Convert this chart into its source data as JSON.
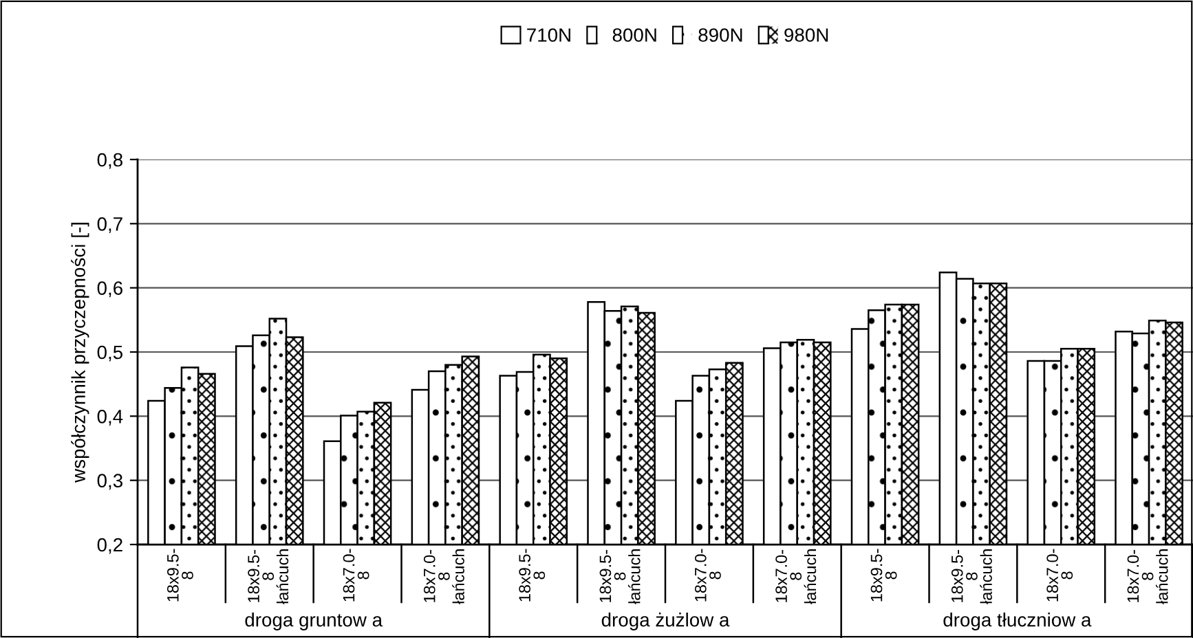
{
  "chart_data": {
    "type": "bar",
    "ylabel": "współczynnik przyczepności [-]",
    "categories": [
      "18x9.5-8",
      "18x9.5-8 łańcuch",
      "18x7.0-8",
      "18x7.0-8 łańcuch",
      "18x9.5-8",
      "18x9.5-8 łańcuch",
      "18x7.0-8",
      "18x7.0-8 łańcuch",
      "18x9.5-8",
      "18x9.5-8 łańcuch",
      "18x7.0-8",
      "18x7.0-8 łańcuch"
    ],
    "series": [
      {
        "name": "710N",
        "color": "#ffffff",
        "values": [
          0.424,
          0.509,
          0.361,
          0.441,
          0.463,
          0.578,
          0.424,
          0.506,
          0.536,
          0.624,
          0.486,
          0.532
        ]
      },
      {
        "name": "800N",
        "color": "#ffffff",
        "values": [
          0.444,
          0.526,
          0.401,
          0.47,
          0.469,
          0.564,
          0.463,
          0.515,
          0.565,
          0.614,
          0.486,
          0.529
        ]
      },
      {
        "name": "890N",
        "color": "#ffffff",
        "values": [
          0.476,
          0.552,
          0.407,
          0.48,
          0.496,
          0.571,
          0.473,
          0.519,
          0.574,
          0.607,
          0.505,
          0.549
        ]
      },
      {
        "name": "980N",
        "color": "#ffffff",
        "values": [
          0.466,
          0.523,
          0.421,
          0.493,
          0.49,
          0.561,
          0.483,
          0.515,
          0.574,
          0.607,
          0.505,
          0.546
        ]
      }
    ],
    "annotations": [
      "droga gruntow a",
      "droga żużlow a",
      "droga tłuczniow a"
    ],
    "ylim": [
      0.2,
      0.8
    ],
    "yticks": [
      {
        "value": 0.2,
        "label": "0,2"
      },
      {
        "value": 0.3,
        "label": "0,3"
      },
      {
        "value": 0.4,
        "label": "0,4"
      },
      {
        "value": 0.5,
        "label": "0,5"
      },
      {
        "value": 0.6,
        "label": "0,6"
      },
      {
        "value": 0.7,
        "label": "0,7"
      },
      {
        "value": 0.8,
        "label": "0,8"
      }
    ],
    "grid": "y",
    "legend": "top"
  }
}
